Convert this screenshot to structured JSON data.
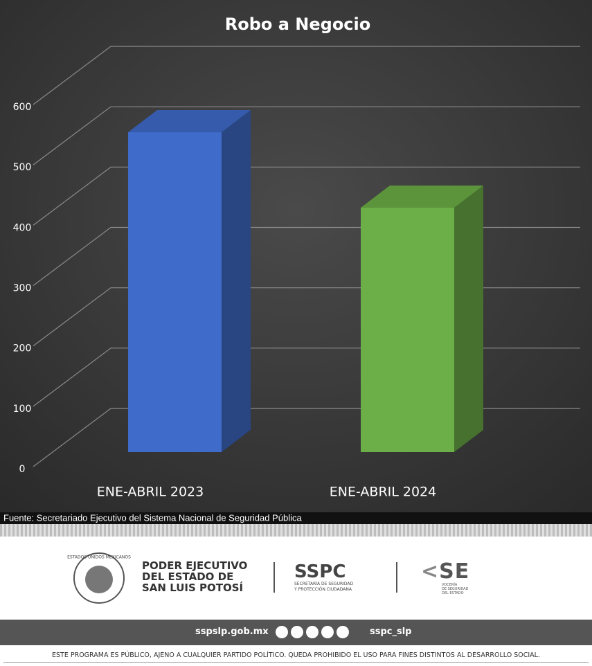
{
  "chart_data": {
    "type": "bar3d",
    "title": "Robo a Negocio",
    "categories": [
      "ENE-ABRIL 2023",
      "ENE-ABRIL 2024"
    ],
    "values": [
      530,
      405
    ],
    "colors": [
      "#3f6bca",
      "#6cae47"
    ],
    "ylim": [
      0,
      600
    ],
    "yticks": [
      0,
      100,
      200,
      300,
      400,
      500,
      600
    ],
    "grid": true
  },
  "source": "Fuente: Secretariado Ejecutivo del Sistema Nacional de Seguridad Pública",
  "footer": {
    "emblem": "ESTADOS UNIDOS MEXICANOS",
    "gov": [
      "PODER EJECUTIVO",
      "DEL ESTADO DE",
      "SAN LUIS POTOSÍ"
    ],
    "sspc": "SSPC",
    "sspc_sub": [
      "SECRETARÍA DE SEGURIDAD",
      "Y PROTECCIÓN CIUDADANA"
    ],
    "se": "SE",
    "se_sub": [
      "VOCERÍA",
      "DE SEGURIDAD",
      "DEL ESTADO"
    ],
    "website": "sspslp.gob.mx",
    "handle": "sspc_slp",
    "disclaimer": "ESTE PROGRAMA ES PÚBLICO, AJENO A CUALQUIER PARTIDO POLÍTICO. QUEDA PROHIBIDO EL USO PARA FINES DISTINTOS AL DESARROLLO SOCIAL."
  }
}
